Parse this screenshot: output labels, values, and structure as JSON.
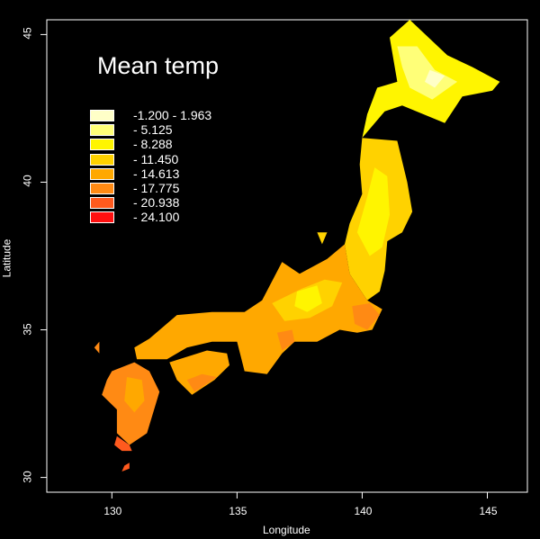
{
  "chart_data": {
    "type": "heatmap",
    "title": "Mean temp",
    "xlabel": "Longitude",
    "ylabel": "Latitude",
    "xlim": [
      127.4,
      146.6
    ],
    "ylim": [
      29.5,
      45.5
    ],
    "x_ticks": [
      "130",
      "135",
      "140",
      "145"
    ],
    "y_ticks": [
      "30",
      "35",
      "40",
      "45"
    ],
    "legend": [
      {
        "label": "-1.200 - 1.963",
        "color": "#FFFFC8"
      },
      {
        "label": "- 5.125",
        "color": "#FFFF78"
      },
      {
        "label": "- 8.288",
        "color": "#FFF500"
      },
      {
        "label": "- 11.450",
        "color": "#FFD200"
      },
      {
        "label": "- 14.613",
        "color": "#FFA800"
      },
      {
        "label": "- 17.775",
        "color": "#FF8A14"
      },
      {
        "label": "- 20.938",
        "color": "#FF5A1E"
      },
      {
        "label": "- 24.100",
        "color": "#FF1010"
      }
    ]
  },
  "colors": {
    "background": "#000000",
    "foreground": "#ffffff"
  }
}
